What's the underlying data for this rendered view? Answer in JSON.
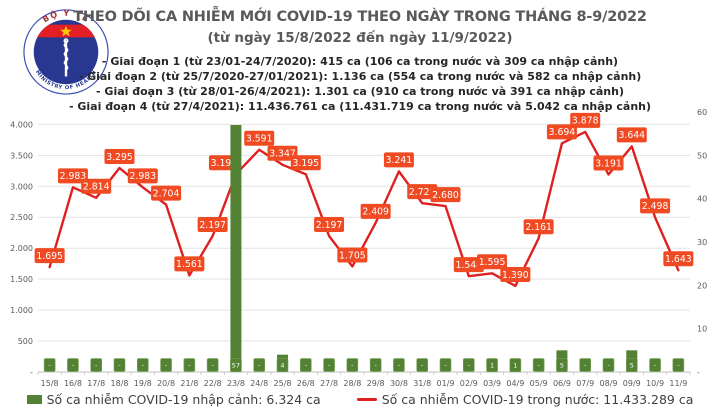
{
  "header": {
    "title": "THEO DÕI CA NHIỄM MỚI COVID-19 THEO NGÀY TRONG THÁNG 8-9/2022",
    "subtitle": "(từ ngày 15/8/2022 đến ngày 11/9/2022)",
    "phases": [
      "- Giai đoạn 1 (từ 23/01-24/7/2020): 415 ca (106 ca trong nước và 309 ca nhập cảnh)",
      "- Giai đoạn 2 (từ 25/7/2020-27/01/2021): 1.136 ca (554 ca trong nước và 582 ca nhập cảnh)",
      "- Giai đoạn 3 (từ 28/01-26/4/2021): 1.301 ca (910 ca trong nước và 391 ca nhập cảnh)",
      "- Giai đoạn 4 (từ 27/4/2021): 11.436.761 ca (11.431.719 ca trong nước và 5.042 ca nhập cảnh)"
    ],
    "logo": {
      "top_text": "BỘ Y TẾ",
      "bottom_text": "MINISTRY OF HEALTH"
    }
  },
  "chart_data": {
    "type": "line+bar",
    "categories": [
      "15/8",
      "16/8",
      "17/8",
      "18/8",
      "19/8",
      "20/8",
      "21/8",
      "22/8",
      "23/8",
      "24/8",
      "25/8",
      "26/8",
      "27/8",
      "28/8",
      "29/8",
      "30/8",
      "31/8",
      "01/9",
      "02/9",
      "03/9",
      "04/9",
      "05/9",
      "06/9",
      "07/9",
      "08/9",
      "09/9",
      "10/9",
      "11/9"
    ],
    "series": [
      {
        "name": "Số ca nhiễm COVID-19 nhập cảnh",
        "type": "bar",
        "axis": "right",
        "color": "#548235",
        "values": [
          0,
          0,
          0,
          0,
          0,
          0,
          0,
          0,
          57,
          0,
          4,
          0,
          0,
          0,
          0,
          0,
          0,
          0,
          0,
          1,
          1,
          0,
          5,
          0,
          0,
          5,
          0,
          0
        ],
        "labels": [
          "-",
          "-",
          "-",
          "-",
          "-",
          "-",
          "-",
          "-",
          "57",
          "-",
          "4",
          "-",
          "-",
          "-",
          "-",
          "-",
          "-",
          "-",
          "-",
          "1",
          "1",
          "-",
          "5",
          "-",
          "-",
          "5",
          "-",
          "-"
        ]
      },
      {
        "name": "Số ca nhiễm COVID-19 trong nước",
        "type": "line",
        "axis": "left",
        "color": "#e02020",
        "label_bg": "#f04a23",
        "values": [
          1695,
          2983,
          2814,
          3295,
          2983,
          2704,
          1561,
          2197,
          3195,
          3591,
          3347,
          3195,
          2197,
          1705,
          2409,
          3241,
          2727,
          2680,
          1548,
          1595,
          1390,
          2161,
          3694,
          3878,
          3191,
          3644,
          2498,
          1643
        ],
        "labels": [
          "1.695",
          "2.983",
          "2.814",
          "3.295",
          "2.983",
          "2.704",
          "1.561",
          "2.197",
          "3.195",
          "3.591",
          "3.347",
          "3.195",
          "2.197",
          "1.705",
          "2.409",
          "3.241",
          "2.727",
          "2.680",
          "1.548",
          "1.595",
          "1.390",
          "2.161",
          "3.694",
          "3.878",
          "3.191",
          "3.644",
          "2.498",
          "1.643"
        ]
      }
    ],
    "left_axis": {
      "tick_labels": [
        "4.000",
        "3.500",
        "3.000",
        "2.500",
        "2.000",
        "1.500",
        "1.000",
        "500",
        "-"
      ],
      "tick_values": [
        4000,
        3500,
        3000,
        2500,
        2000,
        1500,
        1000,
        500,
        0
      ],
      "plot_max": 4200
    },
    "right_axis": {
      "tick_labels": [
        "60",
        "50",
        "40",
        "30",
        "20",
        "10",
        "-"
      ],
      "tick_values": [
        60,
        50,
        40,
        30,
        20,
        10,
        0
      ],
      "plot_max": 60
    },
    "grid": true,
    "legend_position": "bottom",
    "legend": [
      {
        "label": "Số ca nhiễm COVID-19 nhập cảnh: 6.324 ca"
      },
      {
        "label": "Số ca nhiễm COVID-19 trong nước: 11.433.289 ca"
      }
    ]
  }
}
